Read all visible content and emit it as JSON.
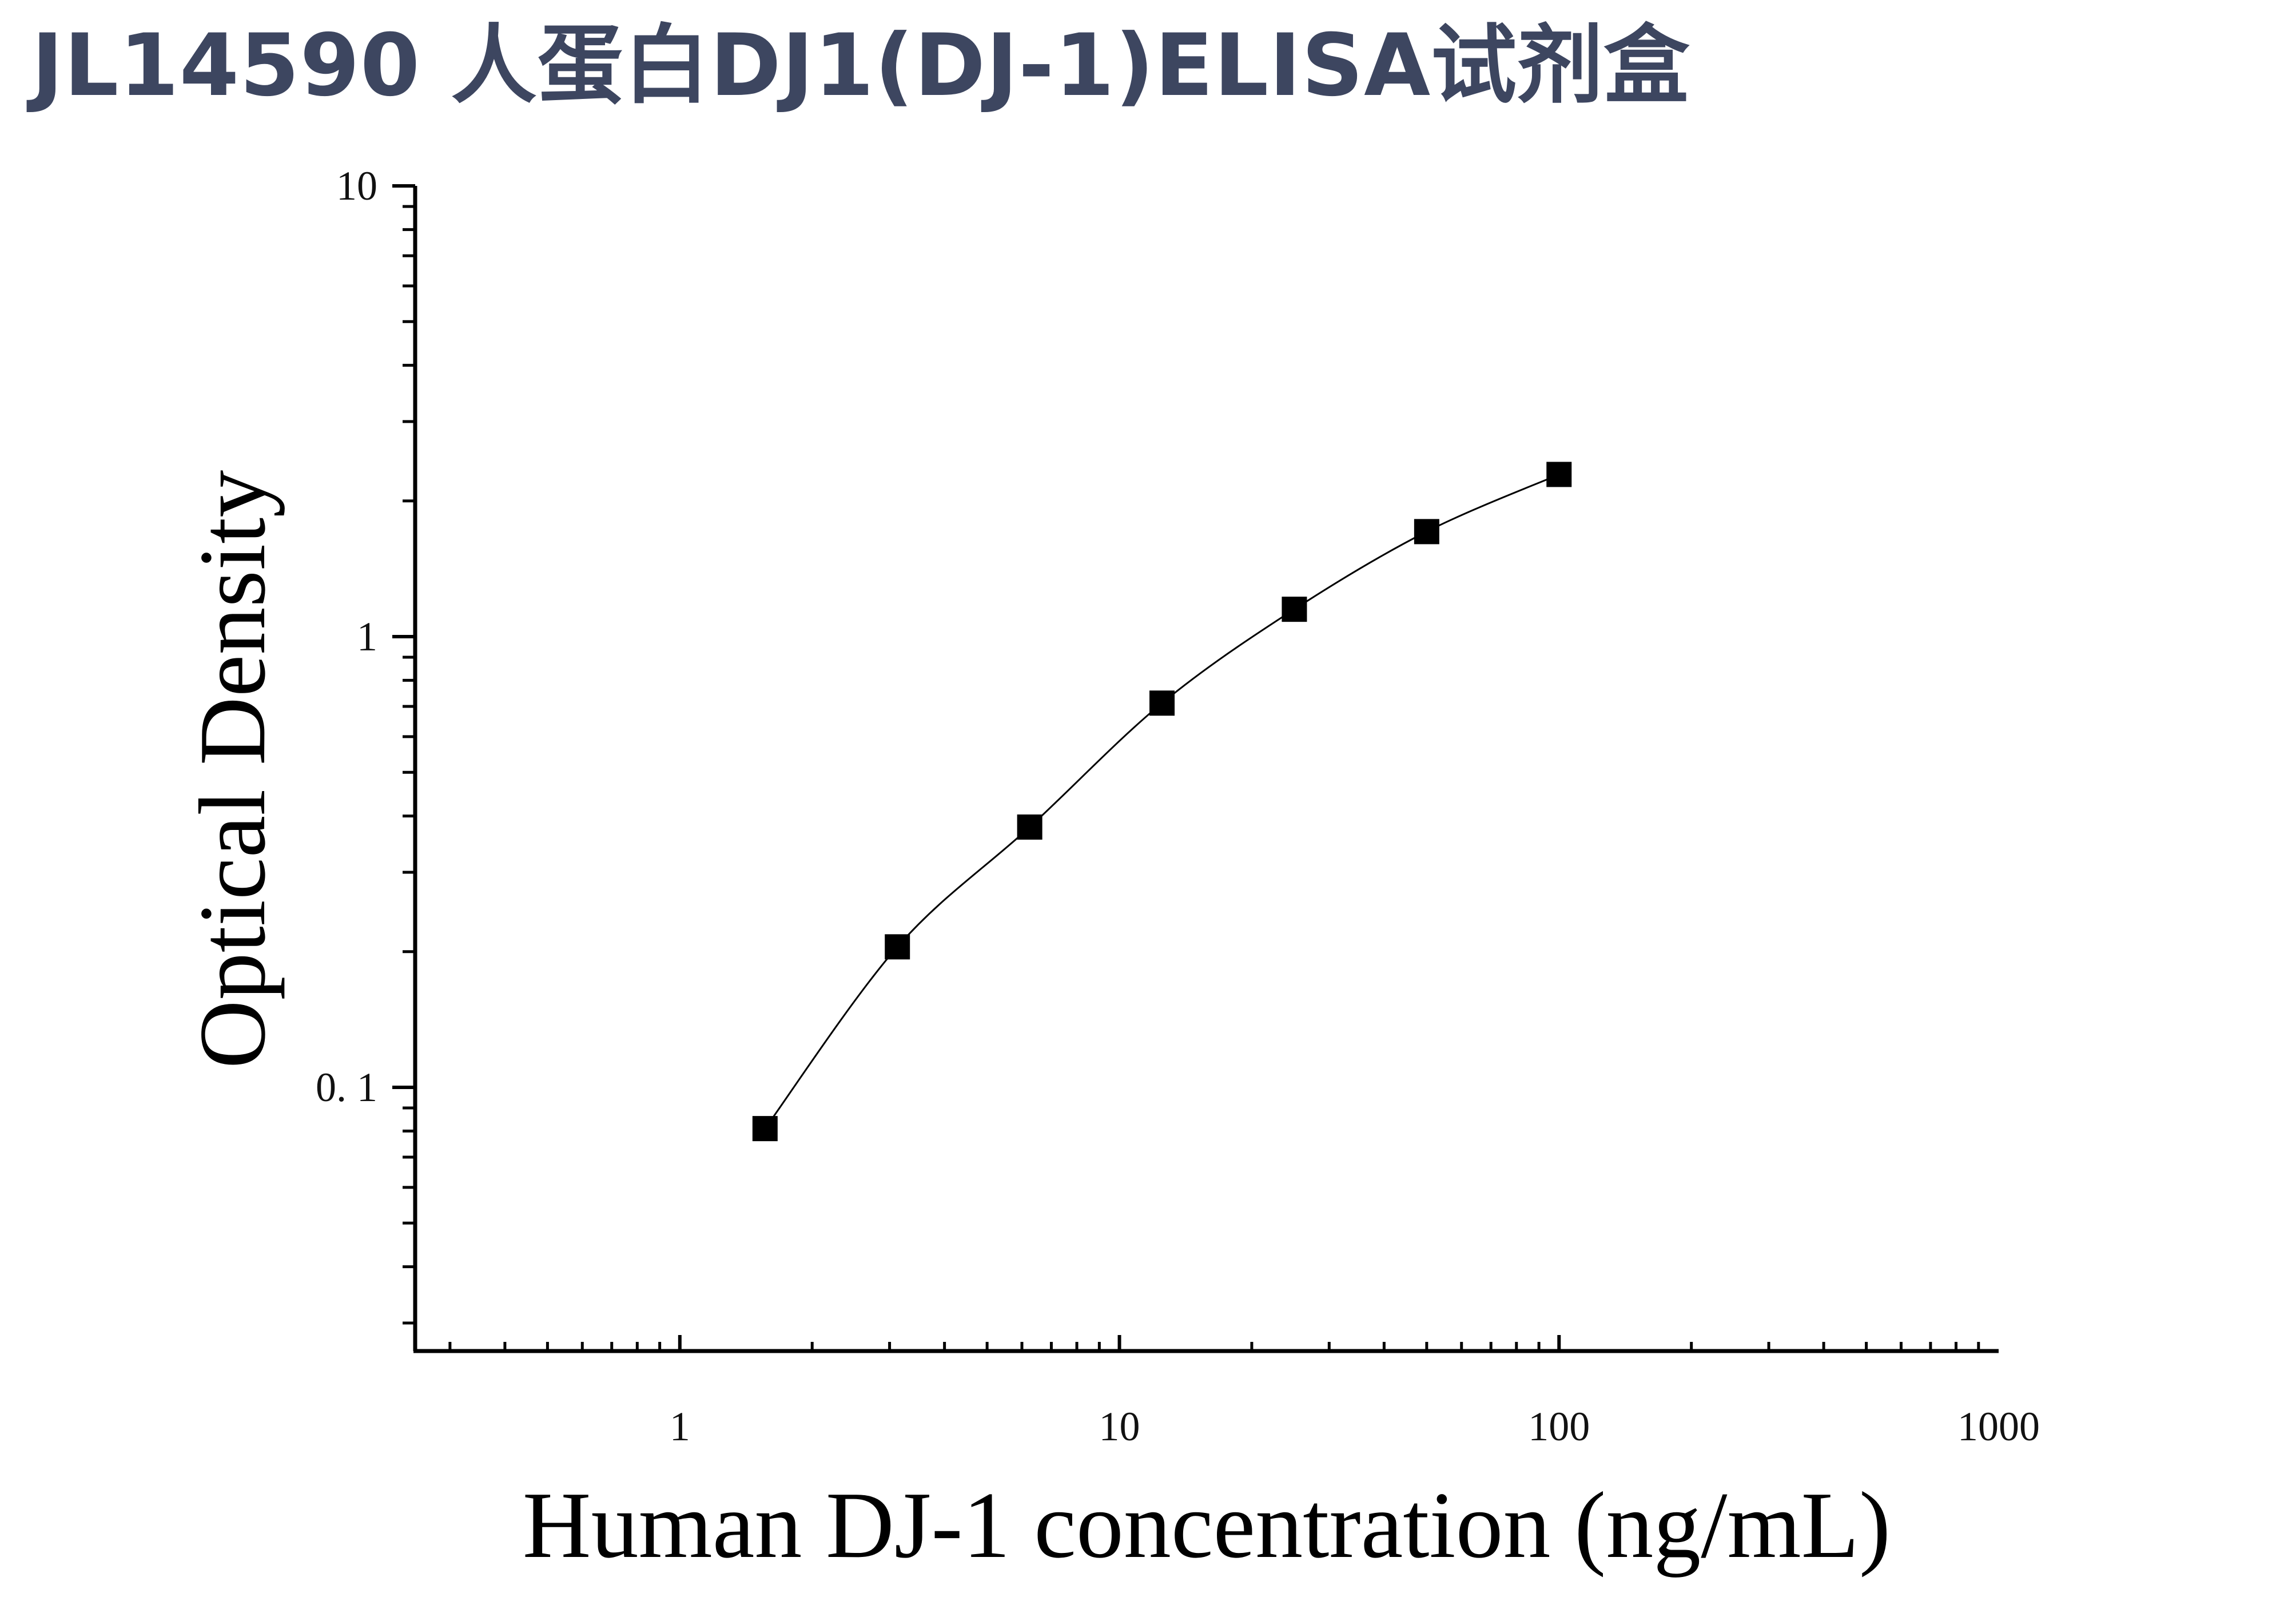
{
  "page": {
    "title": "JL14590 人蛋白DJ1(DJ-1)ELISA试剂盒"
  },
  "chart_data": {
    "type": "scatter",
    "title": "JL14590 人蛋白DJ1(DJ-1)ELISA试剂盒",
    "xlabel": "Human DJ-1 concentration (ng/mL)",
    "ylabel": "Optical Density",
    "x_scale": "log",
    "y_scale": "log",
    "xlim": [
      0.25,
      1000
    ],
    "ylim": [
      0.026,
      10
    ],
    "x_ticks": [
      {
        "value": 1,
        "label": "1"
      },
      {
        "value": 10,
        "label": "10"
      },
      {
        "value": 100,
        "label": "100"
      },
      {
        "value": 1000,
        "label": "1000"
      }
    ],
    "y_ticks": [
      {
        "value": 0.1,
        "label": "0. 1"
      },
      {
        "value": 1,
        "label": "1"
      },
      {
        "value": 10,
        "label": "10"
      }
    ],
    "grid": false,
    "legend": "none",
    "marker": "square",
    "fit_line": "smooth curve through points",
    "colors": {
      "title": "#3d4660",
      "markers": "#000000",
      "axes": "#000000"
    },
    "series": [
      {
        "x": [
          1.5625,
          3.125,
          6.25,
          12.5,
          25,
          50,
          100
        ],
        "y": [
          0.081,
          0.205,
          0.378,
          0.712,
          1.15,
          1.71,
          2.29
        ]
      }
    ]
  }
}
